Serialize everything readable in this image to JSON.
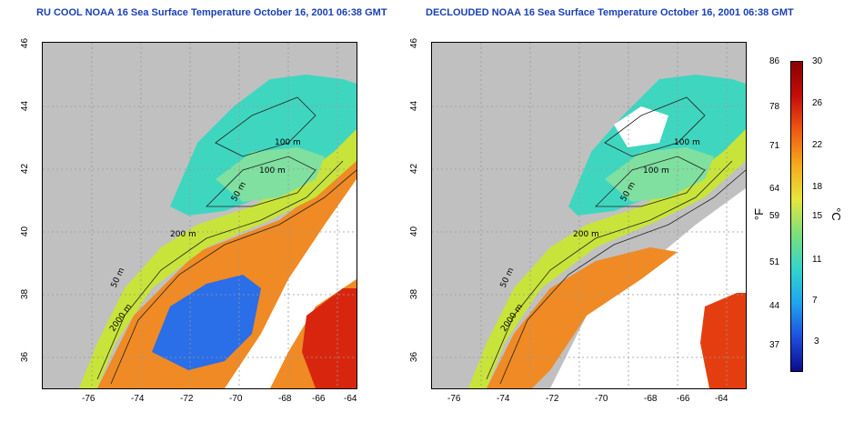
{
  "maps": [
    {
      "title": "RU COOL NOAA 16 Sea Surface Temperature October 16, 2001 06:38 GMT",
      "contour_labels": [
        "100 m",
        "100 m",
        "50 m",
        "200 m",
        "50 m",
        "2000 m"
      ]
    },
    {
      "title": "DECLOUDED NOAA 16 Sea Surface Temperature October 16, 2001 06:38 GMT",
      "contour_labels": [
        "100 m",
        "100 m",
        "50 m",
        "200 m",
        "50 m",
        "2000 m"
      ]
    }
  ],
  "axes": {
    "lat_ticks": [
      "46",
      "44",
      "42",
      "40",
      "38",
      "36"
    ],
    "lon_ticks": [
      "-76",
      "-74",
      "-72",
      "-70",
      "-68",
      "-66",
      "-64"
    ]
  },
  "colorbar": {
    "fahrenheit_ticks": [
      "86",
      "78",
      "71",
      "64",
      "59",
      "51",
      "44",
      "37"
    ],
    "celsius_ticks": [
      "30",
      "26",
      "22",
      "18",
      "15",
      "11",
      "7",
      "3"
    ],
    "fahrenheit_unit": "°F",
    "celsius_unit": "°C",
    "colors": [
      "#0b0c8c",
      "#1f4fe0",
      "#1ea6f0",
      "#32d6c8",
      "#7de07a",
      "#e6e63a",
      "#f6a91c",
      "#ef5a12",
      "#c80c0c",
      "#8a0000"
    ]
  },
  "colors": {
    "land": "#c0c0c0",
    "cloud": "#ffffff",
    "title": "#1a3fb5"
  }
}
